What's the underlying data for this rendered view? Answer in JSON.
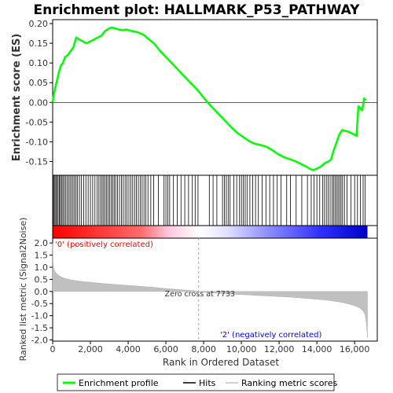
{
  "chart_data": {
    "type": "line",
    "title": "Enrichment plot: HALLMARK_P53_PATHWAY",
    "es_panel": {
      "ylabel": "Enrichment score (ES)",
      "ylim": [
        -0.185,
        0.21
      ],
      "yticks": [
        -0.15,
        -0.1,
        -0.05,
        0.0,
        0.05,
        0.1,
        0.15,
        0.2
      ],
      "ytick_labels": [
        "-0.15",
        "-0.10",
        "-0.05",
        "0.00",
        "0.05",
        "0.10",
        "0.15",
        "0.20"
      ],
      "series": [
        {
          "name": "Enrichment profile",
          "color": "#00ff00",
          "x": [
            0,
            60,
            150,
            250,
            350,
            450,
            550,
            650,
            800,
            950,
            1100,
            1250,
            1400,
            1600,
            1800,
            2000,
            2200,
            2400,
            2600,
            2750,
            2900,
            3100,
            3300,
            3500,
            3700,
            3900,
            4100,
            4300,
            4500,
            4800,
            5100,
            5400,
            5700,
            6000,
            6300,
            6600,
            6900,
            7200,
            7500,
            7733,
            8000,
            8300,
            8600,
            8900,
            9200,
            9500,
            9800,
            10100,
            10400,
            10700,
            11000,
            11300,
            11600,
            11900,
            12200,
            12500,
            12800,
            13100,
            13400,
            13600,
            13800,
            14000,
            14200,
            14400,
            14600,
            14750,
            14900,
            15050,
            15200,
            15350,
            15500,
            15700,
            15900,
            16000,
            16100,
            16200,
            16300,
            16400,
            16500,
            16600
          ],
          "y": [
            0.0,
            0.02,
            0.04,
            0.06,
            0.08,
            0.095,
            0.1,
            0.115,
            0.12,
            0.13,
            0.14,
            0.165,
            0.16,
            0.155,
            0.15,
            0.155,
            0.16,
            0.165,
            0.17,
            0.18,
            0.185,
            0.19,
            0.188,
            0.185,
            0.183,
            0.185,
            0.182,
            0.18,
            0.178,
            0.172,
            0.16,
            0.148,
            0.13,
            0.115,
            0.1,
            0.085,
            0.07,
            0.055,
            0.04,
            0.028,
            0.012,
            -0.005,
            -0.02,
            -0.035,
            -0.05,
            -0.065,
            -0.078,
            -0.088,
            -0.098,
            -0.105,
            -0.108,
            -0.112,
            -0.12,
            -0.13,
            -0.138,
            -0.143,
            -0.148,
            -0.155,
            -0.162,
            -0.168,
            -0.172,
            -0.168,
            -0.163,
            -0.155,
            -0.15,
            -0.145,
            -0.12,
            -0.1,
            -0.08,
            -0.07,
            -0.072,
            -0.075,
            -0.08,
            -0.082,
            -0.085,
            -0.01,
            -0.015,
            -0.02,
            0.01,
            0.005
          ]
        }
      ]
    },
    "hits_panel": {
      "label": "Hits",
      "hit_ranks": [
        20,
        70,
        120,
        170,
        230,
        290,
        350,
        410,
        470,
        540,
        610,
        680,
        760,
        840,
        920,
        1000,
        1080,
        1160,
        1240,
        1320,
        1420,
        1520,
        1640,
        1760,
        1880,
        2000,
        2120,
        2240,
        2360,
        2450,
        2540,
        2620,
        2700,
        2780,
        2860,
        2940,
        3020,
        3100,
        3180,
        3260,
        3340,
        3440,
        3540,
        3640,
        3740,
        3840,
        3940,
        4040,
        4140,
        4240,
        4340,
        4440,
        4540,
        4640,
        4740,
        4840,
        4940,
        5050,
        5200,
        5350,
        5600,
        5900,
        6000,
        6100,
        6200,
        6400,
        6600,
        6800,
        7000,
        7200,
        7400,
        7550,
        7700,
        8300,
        8500,
        8700,
        9000,
        9100,
        9200,
        9300,
        9400,
        9600,
        9750,
        9900,
        10000,
        10100,
        10200,
        10300,
        10450,
        10600,
        10750,
        10900,
        11100,
        11300,
        11500,
        11700,
        11900,
        12100,
        12400,
        12600,
        12900,
        13200,
        13500,
        13700,
        13850,
        14000,
        14150,
        14300,
        14400,
        14500,
        14600,
        14700,
        14800,
        14880,
        14960,
        15040,
        15120,
        15200,
        15280,
        15360,
        15460,
        15600,
        15800,
        16000,
        16150,
        16300,
        16450,
        16550
      ]
    },
    "metric_panel": {
      "ylabel": "Ranked list metric (Signal2Noise)",
      "xlabel": "Rank in Ordered Dataset",
      "ylim": [
        -2.05,
        2.2
      ],
      "yticks": [
        2.0,
        1.5,
        1.0,
        0.5,
        0.0,
        -0.5,
        -1.0,
        -1.5,
        -2.0
      ],
      "ytick_labels": [
        "2.0",
        "1.5",
        "1.0",
        "0.5",
        "0.0",
        "-0.5",
        "-1.0",
        "-1.5",
        "-2.0"
      ],
      "xlim": [
        0,
        17200
      ],
      "xticks": [
        0,
        2000,
        4000,
        6000,
        8000,
        10000,
        12000,
        14000,
        16000
      ],
      "xtick_labels": [
        "0",
        "2,000",
        "4,000",
        "6,000",
        "8,000",
        "10,000",
        "12,000",
        "14,000",
        "16,000"
      ],
      "profile_x": [
        0,
        20,
        60,
        120,
        200,
        300,
        450,
        650,
        900,
        1200,
        1600,
        2000,
        2500,
        3000,
        3500,
        4000,
        4500,
        5000,
        5500,
        6000,
        6500,
        7000,
        7500,
        7733,
        8000,
        8500,
        9000,
        9500,
        10000,
        10500,
        11000,
        11500,
        12000,
        12500,
        13000,
        13500,
        14000,
        14500,
        15000,
        15300,
        15600,
        15900,
        16100,
        16300,
        16450,
        16550,
        16620,
        16680
      ],
      "profile_y": [
        2.0,
        1.2,
        0.95,
        0.82,
        0.75,
        0.68,
        0.6,
        0.54,
        0.49,
        0.45,
        0.41,
        0.38,
        0.34,
        0.31,
        0.28,
        0.25,
        0.22,
        0.19,
        0.16,
        0.12,
        0.09,
        0.06,
        0.03,
        0.0,
        -0.03,
        -0.06,
        -0.09,
        -0.11,
        -0.13,
        -0.15,
        -0.17,
        -0.19,
        -0.21,
        -0.23,
        -0.26,
        -0.29,
        -0.32,
        -0.36,
        -0.41,
        -0.45,
        -0.5,
        -0.56,
        -0.62,
        -0.7,
        -0.8,
        -0.95,
        -1.3,
        -1.9
      ],
      "zero_cross_rank": 7733,
      "zero_cross_label": "Zero cross at 7733",
      "pos_label": "'0' (positively correlated)",
      "neg_label": "'2' (negatively correlated)",
      "pos_color": "#ff0000",
      "neg_color": "#0000ff",
      "fill_color": "#c0c0c0"
    },
    "legend": {
      "placement": "bottom",
      "entries": [
        {
          "label": "Enrichment profile",
          "color": "#00ff00",
          "style": "line"
        },
        {
          "label": "Hits",
          "color": "#000000",
          "style": "line"
        },
        {
          "label": "Ranking metric scores",
          "color": "#c0c0c0",
          "style": "line"
        }
      ]
    },
    "n_genes": 16680
  }
}
